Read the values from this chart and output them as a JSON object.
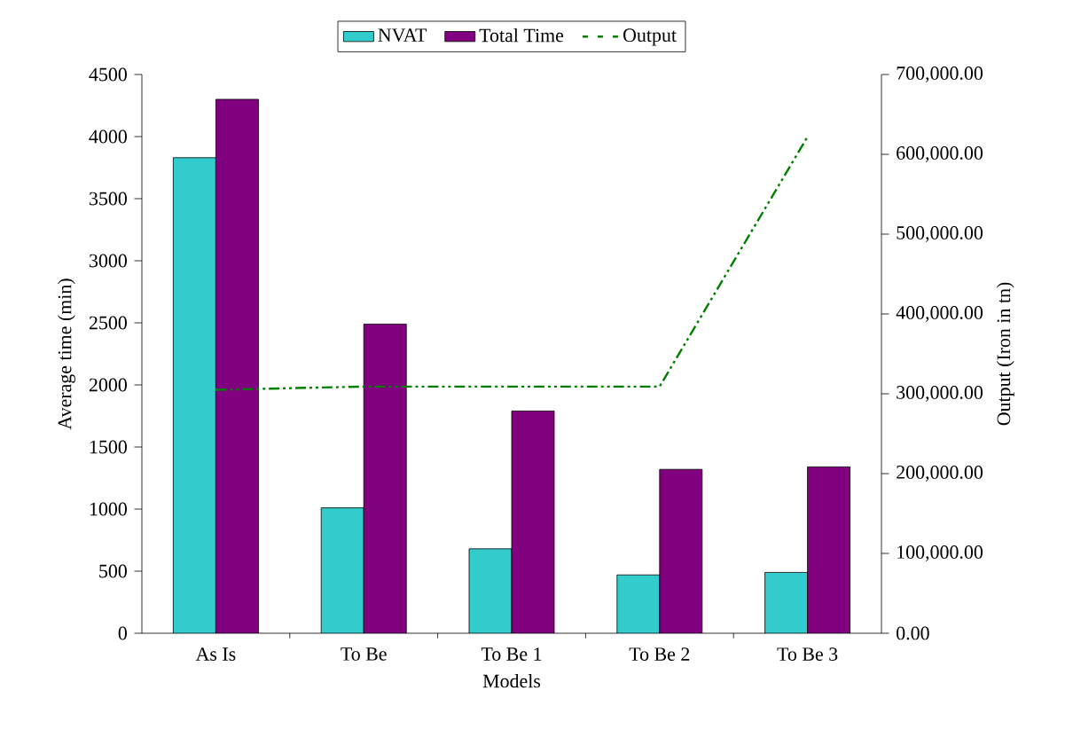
{
  "chart_data": {
    "type": "bar",
    "xlabel": "Models",
    "ylabel": "Average time (min)",
    "y2label": "Output (Iron in tn)",
    "categories": [
      "As Is",
      "To Be",
      "To Be 1",
      "To Be 2",
      "To Be 3"
    ],
    "series": [
      {
        "name": "NVAT",
        "color": "#33cccc",
        "values": [
          3830,
          1010,
          680,
          470,
          490
        ]
      },
      {
        "name": "Total Time",
        "color": "#800080",
        "values": [
          4300,
          2490,
          1790,
          1320,
          1340
        ]
      },
      {
        "name": "Output",
        "type": "line",
        "axis": "y2",
        "color": "#008000",
        "line_style": "dashed",
        "values": [
          305000,
          309000,
          309000,
          309000,
          622000
        ]
      }
    ],
    "ylim": [
      0,
      4500
    ],
    "yticks": [
      0,
      500,
      1000,
      1500,
      2000,
      2500,
      3000,
      3500,
      4000,
      4500
    ],
    "y2lim": [
      0,
      700000
    ],
    "y2ticks": [
      {
        "value": 0,
        "label": "0.00"
      },
      {
        "value": 100000,
        "label": "100,000.00"
      },
      {
        "value": 200000,
        "label": "200,000.00"
      },
      {
        "value": 300000,
        "label": "300,000.00"
      },
      {
        "value": 400000,
        "label": "400,000.00"
      },
      {
        "value": 500000,
        "label": "500,000.00"
      },
      {
        "value": 600000,
        "label": "600,000.00"
      },
      {
        "value": 700000,
        "label": "700,000.00"
      }
    ],
    "grid": false,
    "legend": "top",
    "marker": "none"
  }
}
